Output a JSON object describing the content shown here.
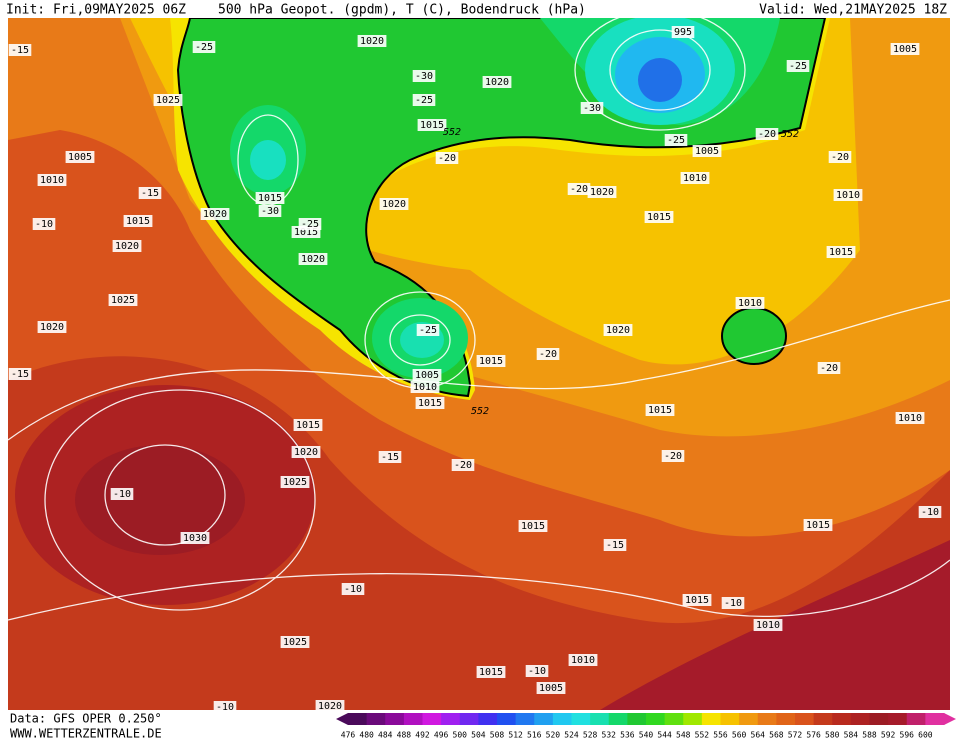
{
  "header": {
    "init": "Init: Fri,09MAY2025 06Z",
    "title": "500 hPa Geopot. (gpdm), T (C), Bodendruck (hPa)",
    "valid": "Valid: Wed,21MAY2025 18Z"
  },
  "footer": {
    "source": "Data: GFS OPER 0.250°",
    "website": "WWW.WETTERZENTRALE.DE"
  },
  "isobar_labels": [
    "1020",
    "995",
    "1005",
    "1025",
    "1020",
    "1015",
    "1005",
    "1010",
    "1015",
    "1020",
    "1015",
    "1020",
    "1015",
    "1020",
    "1020",
    "1020",
    "1015",
    "1010",
    "1005",
    "1010",
    "1015",
    "1025",
    "1020",
    "1010",
    "1020",
    "1015",
    "1005",
    "1010",
    "1015",
    "1015",
    "1010",
    "1015",
    "1020",
    "1025",
    "1030",
    "1015",
    "1015",
    "1015",
    "1010",
    "1025",
    "1010",
    "1015",
    "1005",
    "1020"
  ],
  "temperature_labels": [
    "-25",
    "-15",
    "-30",
    "-25",
    "-30",
    "-25",
    "-25",
    "-20",
    "-20",
    "-15",
    "-30",
    "-25",
    "-10",
    "-20",
    "-20",
    "-25",
    "-20",
    "-15",
    "-20",
    "-15",
    "-20",
    "-20",
    "-10",
    "-15",
    "-10",
    "-10",
    "-10",
    "-10",
    "-10"
  ],
  "height_labels": [
    "552",
    "552",
    "552"
  ],
  "colorbar": {
    "values": [
      476,
      480,
      484,
      488,
      492,
      496,
      500,
      504,
      508,
      512,
      516,
      520,
      524,
      528,
      532,
      536,
      540,
      544,
      548,
      552,
      556,
      560,
      564,
      568,
      572,
      576,
      580,
      584,
      588,
      592,
      596,
      600
    ],
    "colors": [
      "#4a0a5a",
      "#6a0a7a",
      "#8a0a9a",
      "#b010c0",
      "#d018e0",
      "#a020f0",
      "#7028f0",
      "#4030f0",
      "#2050f0",
      "#2078f0",
      "#20a0f0",
      "#20c8f0",
      "#20e0e0",
      "#18e0b0",
      "#14d86a",
      "#20c832",
      "#30d820",
      "#60e010",
      "#a0e800",
      "#f6e400",
      "#f6c200",
      "#f09a10",
      "#e87a18",
      "#e06418",
      "#d9531c",
      "#c43a1c",
      "#b82a1e",
      "#ad2222",
      "#9c1c24",
      "#a51b2a",
      "#c0206a",
      "#e030a0"
    ]
  }
}
